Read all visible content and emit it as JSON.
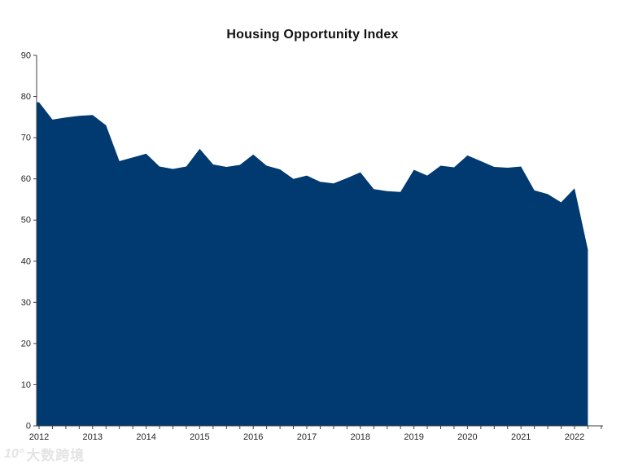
{
  "page": {
    "background": "#ffffff"
  },
  "header": {
    "title": "Housing Opportunity Index"
  },
  "watermark": {
    "logo": "10°",
    "text": "大数跨境"
  },
  "chart_data": {
    "type": "area",
    "title": "Housing Opportunity Index",
    "x_unit": "quarterly",
    "grid": false,
    "legend": false,
    "ylim": [
      0,
      90
    ],
    "y_ticks": [
      0,
      10,
      20,
      30,
      40,
      50,
      60,
      70,
      80,
      90
    ],
    "x_tick_labels": [
      "2012",
      "2013",
      "2014",
      "2015",
      "2016",
      "2017",
      "2018",
      "2019",
      "2020",
      "2021",
      "2022"
    ],
    "quarters": [
      "2012Q1",
      "2012Q2",
      "2012Q3",
      "2012Q4",
      "2013Q1",
      "2013Q2",
      "2013Q3",
      "2013Q4",
      "2014Q1",
      "2014Q2",
      "2014Q3",
      "2014Q4",
      "2015Q1",
      "2015Q2",
      "2015Q3",
      "2015Q4",
      "2016Q1",
      "2016Q2",
      "2016Q3",
      "2016Q4",
      "2017Q1",
      "2017Q2",
      "2017Q3",
      "2017Q4",
      "2018Q1",
      "2018Q2",
      "2018Q3",
      "2018Q4",
      "2019Q1",
      "2019Q2",
      "2019Q3",
      "2019Q4",
      "2020Q1",
      "2020Q2",
      "2020Q3",
      "2020Q4",
      "2021Q1",
      "2021Q2",
      "2021Q3",
      "2021Q4",
      "2022Q1",
      "2022Q2"
    ],
    "values": [
      78.6,
      74.4,
      74.9,
      75.3,
      75.5,
      73.0,
      64.3,
      65.2,
      66.1,
      63.0,
      62.4,
      63.0,
      67.3,
      63.5,
      62.9,
      63.4,
      65.9,
      63.2,
      62.3,
      60.0,
      60.8,
      59.3,
      58.9,
      60.2,
      61.6,
      57.5,
      57.0,
      56.8,
      62.2,
      60.8,
      63.2,
      62.8,
      65.7,
      64.3,
      62.9,
      62.7,
      63.0,
      57.2,
      56.3,
      54.3,
      57.7,
      42.8
    ],
    "fill_color": "#003A70",
    "axis_color": "#3f3f3f",
    "tick_label_color": "#262626",
    "title_color": "#111111"
  }
}
